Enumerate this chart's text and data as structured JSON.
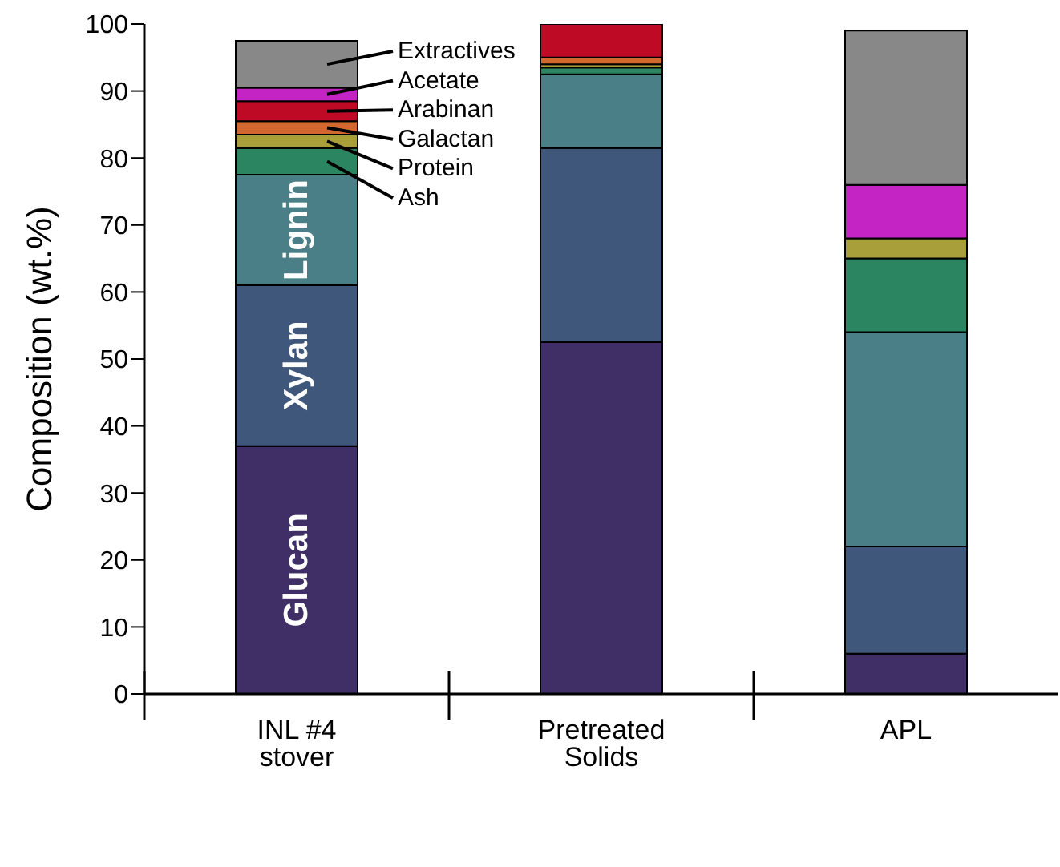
{
  "chart_data": {
    "type": "bar",
    "stacked": true,
    "ylabel": "Composition (wt.%)",
    "categories": [
      "INL #4 stover",
      "Pretreated Solids",
      "APL"
    ],
    "series": [
      {
        "name": "Glucan",
        "color": "#3f2f66",
        "values": [
          37,
          52.5,
          6
        ]
      },
      {
        "name": "Xylan",
        "color": "#3e577b",
        "values": [
          24,
          29,
          16
        ]
      },
      {
        "name": "Lignin",
        "color": "#4a7f87",
        "values": [
          16.5,
          11,
          32
        ]
      },
      {
        "name": "Ash",
        "color": "#2a8560",
        "values": [
          4,
          1,
          11
        ]
      },
      {
        "name": "Protein",
        "color": "#a89f3a",
        "values": [
          2,
          0.5,
          3
        ]
      },
      {
        "name": "Galactan",
        "color": "#d2682d",
        "values": [
          2,
          1,
          null
        ]
      },
      {
        "name": "Arabinan",
        "color": "#be0a24",
        "values": [
          3,
          5,
          null
        ]
      },
      {
        "name": "Acetate",
        "color": "#c424c4",
        "values": [
          2,
          null,
          8
        ]
      },
      {
        "name": "Extractives",
        "color": "#888888",
        "values": [
          7,
          null,
          23
        ]
      }
    ],
    "ylim": [
      0,
      100
    ],
    "yticks": [
      0,
      10,
      20,
      30,
      40,
      50,
      60,
      70,
      80,
      90,
      100
    ],
    "grid": false,
    "legend": "top left"
  }
}
